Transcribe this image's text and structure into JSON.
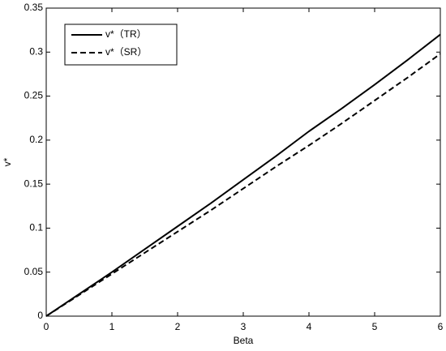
{
  "chart_data": {
    "type": "line",
    "x_label": "Beta",
    "y_label": "v*",
    "x": [
      0,
      0.5,
      1,
      1.5,
      2,
      2.5,
      3,
      3.5,
      4,
      4.5,
      5,
      5.5,
      6
    ],
    "series": [
      {
        "name": "v*（TR）",
        "color": "#000000",
        "line_style": "solid",
        "values": [
          0,
          0.025,
          0.05,
          0.076,
          0.102,
          0.128,
          0.155,
          0.182,
          0.21,
          0.236,
          0.263,
          0.291,
          0.32
        ]
      },
      {
        "name": "v*（SR）",
        "color": "#000000",
        "line_style": "dashed",
        "values": [
          0,
          0.024,
          0.048,
          0.072,
          0.096,
          0.12,
          0.145,
          0.17,
          0.194,
          0.219,
          0.245,
          0.271,
          0.298
        ]
      }
    ],
    "xlim": [
      0,
      6
    ],
    "xticks": [
      0,
      1,
      2,
      3,
      4,
      5,
      6
    ],
    "ylim": [
      0,
      0.35
    ],
    "yticks": [
      0,
      0.05,
      0.1,
      0.15,
      0.2,
      0.25,
      0.3,
      0.35
    ],
    "grid": false,
    "legend": "upper-left"
  }
}
